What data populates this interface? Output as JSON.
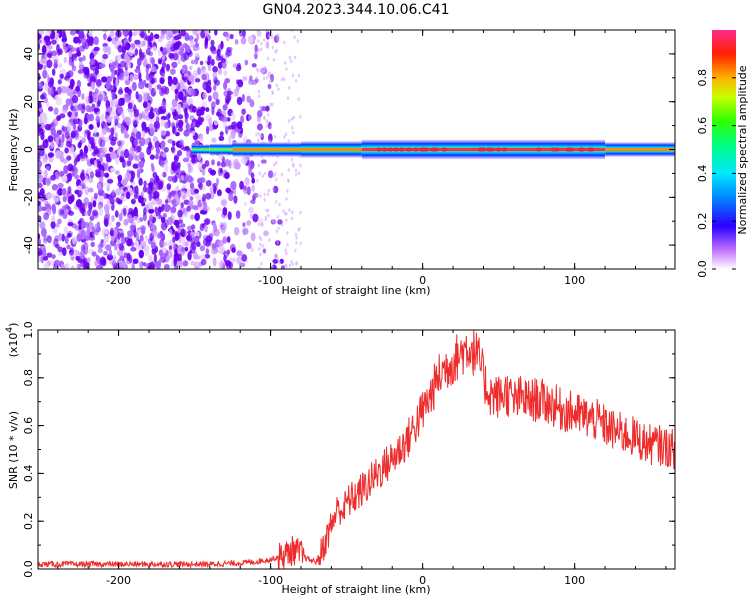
{
  "title": "GN04.2023.344.10.06.C41",
  "colors": {
    "snr_line": "#ee2c2c",
    "noise": "#6a00f0",
    "ridge_core": "#ff2a55"
  },
  "chart_data": [
    {
      "type": "heatmap",
      "xlabel": "Height of straight line (km)",
      "ylabel": "Frequency (Hz)",
      "xlim": [
        -253,
        166
      ],
      "ylim": [
        -50,
        50
      ],
      "xticks": [
        -200,
        -100,
        0,
        100
      ],
      "yticks": [
        -40,
        -20,
        0,
        20,
        40
      ],
      "xtick_labels": [
        "-200",
        "-100",
        "0",
        "100"
      ],
      "ytick_labels": [
        "-40",
        "-20",
        "0",
        "20",
        "40"
      ],
      "colorbar": {
        "label": "Normalized spectral amplitude",
        "range": [
          0,
          1
        ],
        "ticks": [
          0.0,
          0.2,
          0.4,
          0.6,
          0.8
        ],
        "tick_labels": [
          "0.0",
          "0.2",
          "0.4",
          "0.6",
          "0.8"
        ]
      },
      "noise_region_x": [
        -253,
        -82
      ],
      "ridge": {
        "frequency_hz": 0,
        "x_start": -152,
        "x_end": 166,
        "segments": [
          {
            "x0": -152,
            "x1": -140,
            "amplitude": 0.15
          },
          {
            "x0": -140,
            "x1": -125,
            "amplitude": 0.3
          },
          {
            "x0": -125,
            "x1": -80,
            "amplitude": 0.55
          },
          {
            "x0": -80,
            "x1": -40,
            "amplitude": 0.7
          },
          {
            "x0": -40,
            "x1": 120,
            "amplitude": 0.95
          },
          {
            "x0": 120,
            "x1": 166,
            "amplitude": 0.55
          }
        ]
      }
    },
    {
      "type": "line",
      "xlabel": "Height of straight line (km)",
      "ylabel": "SNR (10 * v/v)",
      "y_multiplier_base": "(x10",
      "y_multiplier_exp": "4",
      "y_multiplier_close": ")",
      "xlim": [
        -253,
        166
      ],
      "ylim": [
        0,
        1.0
      ],
      "xticks": [
        -200,
        -100,
        0,
        100
      ],
      "yticks": [
        0.0,
        0.2,
        0.4,
        0.6,
        0.8,
        1.0
      ],
      "xtick_labels": [
        "-200",
        "-100",
        "0",
        "100"
      ],
      "ytick_labels": [
        "0.0",
        "0.2",
        "0.4",
        "0.6",
        "0.8",
        "1.0"
      ],
      "series": [
        {
          "x": [
            -253,
            -240,
            -220,
            -200,
            -180,
            -160,
            -140,
            -120,
            -110,
            -100,
            -95,
            -90,
            -85,
            -82,
            -78,
            -75,
            -70,
            -66,
            -62,
            -58,
            -55,
            -52,
            -50,
            -45,
            -40,
            -35,
            -30,
            -25,
            -20,
            -15,
            -10,
            -5,
            0,
            5,
            10,
            15,
            20,
            25,
            28,
            30,
            32,
            35,
            38,
            40,
            42,
            45,
            50,
            55,
            60,
            65,
            70,
            75,
            80,
            85,
            90,
            95,
            100,
            105,
            110,
            115,
            120,
            125,
            130,
            135,
            140,
            145,
            150,
            155,
            160,
            166
          ],
          "y": [
            0.02,
            0.02,
            0.02,
            0.02,
            0.02,
            0.02,
            0.02,
            0.025,
            0.03,
            0.04,
            0.05,
            0.06,
            0.08,
            0.07,
            0.05,
            0.04,
            0.03,
            0.08,
            0.15,
            0.22,
            0.26,
            0.24,
            0.28,
            0.3,
            0.33,
            0.36,
            0.4,
            0.43,
            0.46,
            0.5,
            0.54,
            0.6,
            0.66,
            0.72,
            0.8,
            0.84,
            0.87,
            0.9,
            0.92,
            0.93,
            0.92,
            0.9,
            0.86,
            0.8,
            0.76,
            0.73,
            0.72,
            0.74,
            0.7,
            0.72,
            0.7,
            0.71,
            0.7,
            0.69,
            0.67,
            0.66,
            0.65,
            0.64,
            0.63,
            0.62,
            0.6,
            0.58,
            0.57,
            0.56,
            0.55,
            0.53,
            0.52,
            0.52,
            0.51,
            0.5
          ]
        }
      ]
    }
  ]
}
